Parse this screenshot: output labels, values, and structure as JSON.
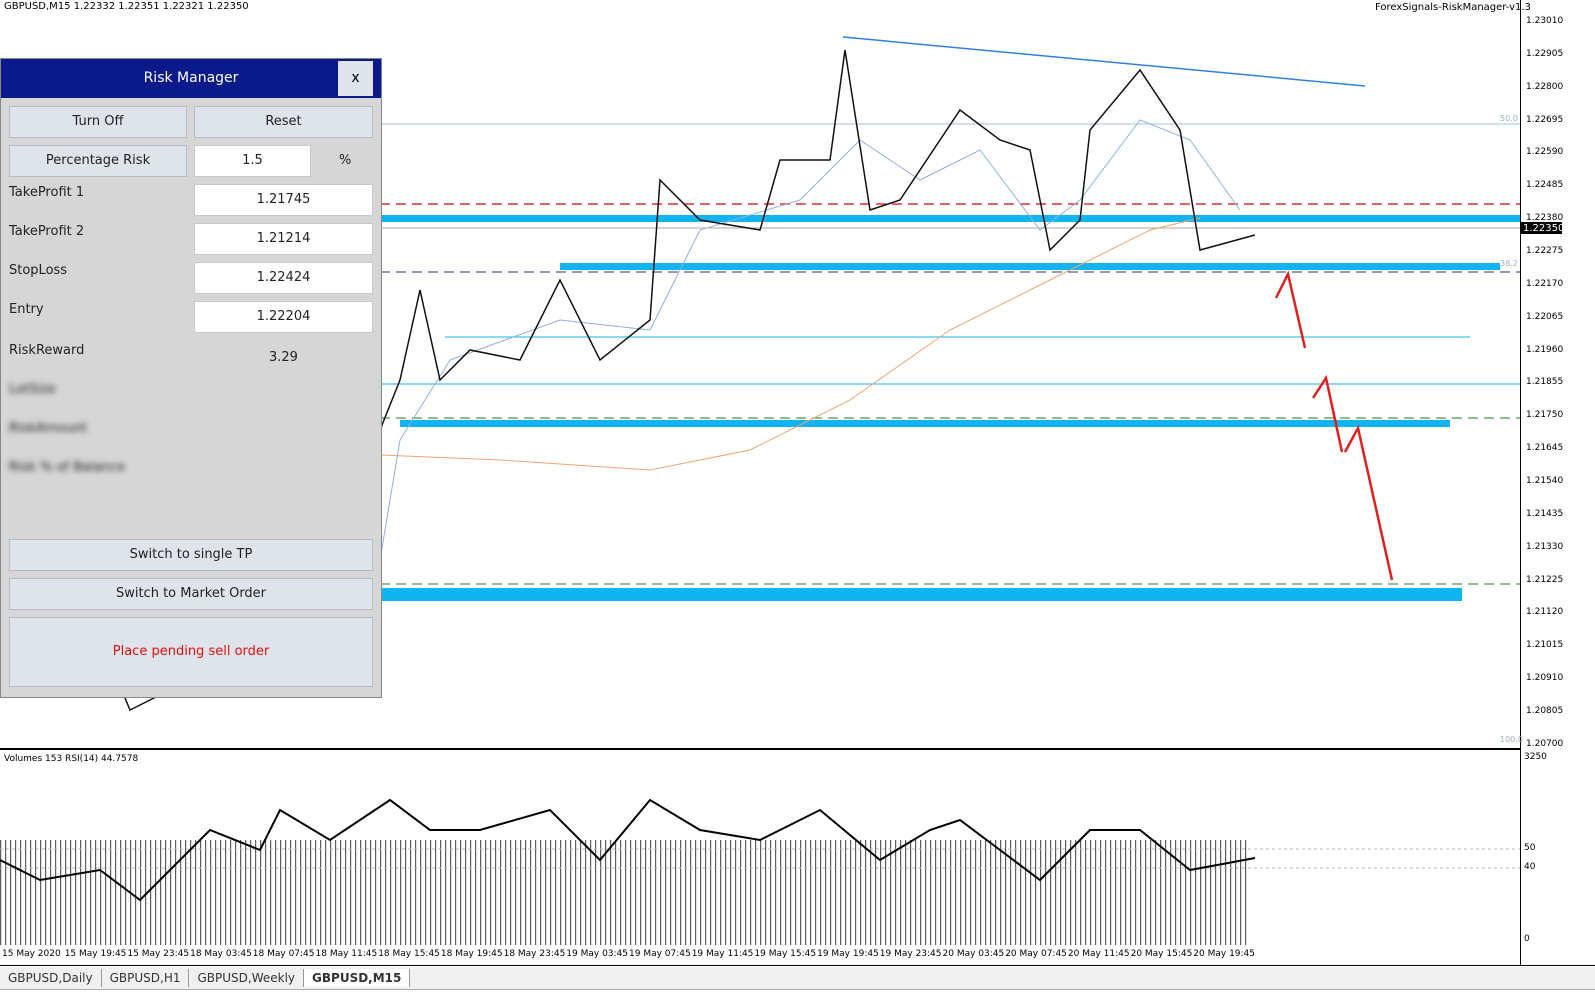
{
  "header": {
    "symbol": "GBPUSD,M15  1.22332 1.22351 1.22321 1.22350",
    "indicator": "ForexSignals-RiskManager-v1.3"
  },
  "price_axis": [
    "1.23010",
    "1.22905",
    "1.22800",
    "1.22695",
    "1.22590",
    "1.22485",
    "1.22380",
    "1.22275",
    "1.22170",
    "1.22065",
    "1.21960",
    "1.21855",
    "1.21750",
    "1.21645",
    "1.21540",
    "1.21435",
    "1.21330",
    "1.21225",
    "1.21120",
    "1.21015",
    "1.20910",
    "1.20805",
    "1.20700"
  ],
  "current_price": "1.22350",
  "fib_labels": [
    "50.0",
    "38.2",
    "100.0"
  ],
  "time_axis": [
    "15 May 2020",
    "15 May 19:45",
    "15 May 23:45",
    "18 May 03:45",
    "18 May 07:45",
    "18 May 11:45",
    "18 May 15:45",
    "18 May 19:45",
    "18 May 23:45",
    "19 May 03:45",
    "19 May 07:45",
    "19 May 11:45",
    "19 May 15:45",
    "19 May 19:45",
    "19 May 23:45",
    "20 May 03:45",
    "20 May 07:45",
    "20 May 11:45",
    "20 May 15:45",
    "20 May 19:45"
  ],
  "subwindow": {
    "title": "Volumes 153  RSI(14) 44.7578",
    "axis": [
      "3250",
      "50",
      "40",
      "0"
    ]
  },
  "tabs": [
    "GBPUSD,Daily",
    "GBPUSD,H1",
    "GBPUSD,Weekly",
    "GBPUSD,M15"
  ],
  "risk_manager": {
    "title": "Risk Manager",
    "close": "x",
    "turn_off": "Turn Off",
    "reset": "Reset",
    "percentage_risk": "Percentage Risk",
    "risk_value": "1.5",
    "risk_unit": "%",
    "fields": [
      {
        "label": "TakeProfit 1",
        "value": "1.21745"
      },
      {
        "label": "TakeProfit 2",
        "value": "1.21214"
      },
      {
        "label": "StopLoss",
        "value": "1.22424"
      },
      {
        "label": "Entry",
        "value": "1.22204"
      }
    ],
    "risk_reward_label": "RiskReward",
    "risk_reward": "3.29",
    "hidden_labels": [
      "LotSize",
      "RiskAmount",
      "Risk % of Balance"
    ],
    "switch_tp": "Switch to single TP",
    "switch_order": "Switch to Market Order",
    "status": "Place pending sell order"
  }
}
